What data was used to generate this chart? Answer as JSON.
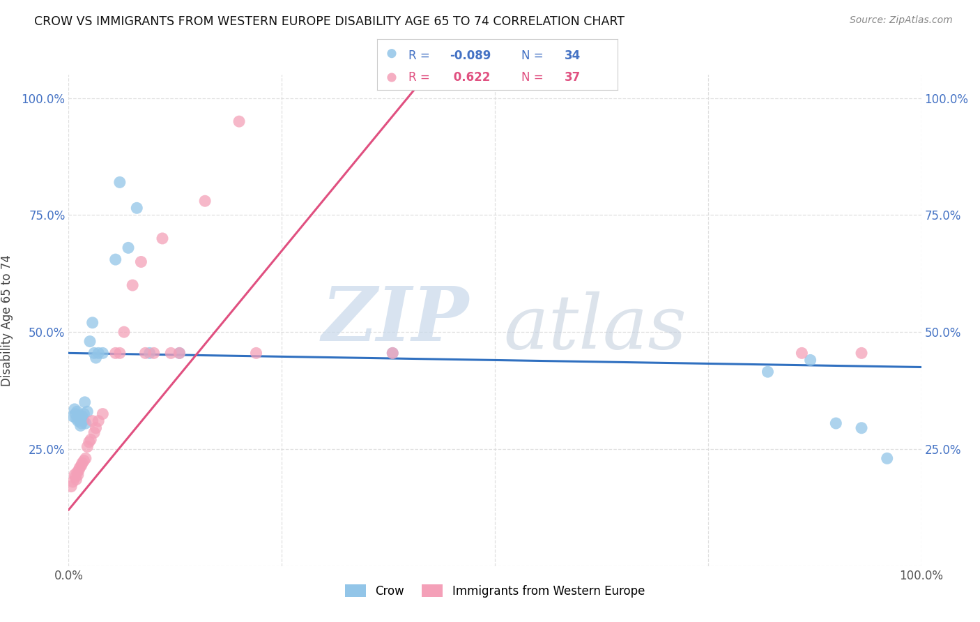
{
  "title": "CROW VS IMMIGRANTS FROM WESTERN EUROPE DISABILITY AGE 65 TO 74 CORRELATION CHART",
  "source": "Source: ZipAtlas.com",
  "ylabel": "Disability Age 65 to 74",
  "xlim": [
    0.0,
    1.0
  ],
  "ylim": [
    0.0,
    1.05
  ],
  "ytick_positions": [
    0.0,
    0.25,
    0.5,
    0.75,
    1.0
  ],
  "xtick_positions": [
    0.0,
    0.25,
    0.5,
    0.75,
    1.0
  ],
  "R_crow": -0.089,
  "N_crow": 34,
  "R_imm": 0.622,
  "N_imm": 37,
  "crow_color": "#92C5E8",
  "imm_color": "#F4A0B8",
  "crow_line_color": "#3070C0",
  "imm_line_color": "#E05080",
  "watermark_zip": "ZIP",
  "watermark_atlas": "atlas",
  "background_color": "#ffffff",
  "grid_color": "#DCDCDC",
  "crow_x": [
    0.005,
    0.007,
    0.008,
    0.009,
    0.01,
    0.011,
    0.012,
    0.013,
    0.014,
    0.015,
    0.016,
    0.017,
    0.018,
    0.019,
    0.02,
    0.022,
    0.025,
    0.028,
    0.03,
    0.032,
    0.035,
    0.04,
    0.055,
    0.06,
    0.07,
    0.08,
    0.095,
    0.13,
    0.38,
    0.82,
    0.87,
    0.9,
    0.93,
    0.96
  ],
  "crow_y": [
    0.32,
    0.335,
    0.325,
    0.315,
    0.33,
    0.31,
    0.315,
    0.32,
    0.3,
    0.305,
    0.32,
    0.31,
    0.325,
    0.35,
    0.305,
    0.33,
    0.48,
    0.52,
    0.455,
    0.445,
    0.455,
    0.455,
    0.655,
    0.82,
    0.68,
    0.765,
    0.455,
    0.455,
    0.455,
    0.415,
    0.44,
    0.305,
    0.295,
    0.23
  ],
  "imm_x": [
    0.003,
    0.005,
    0.007,
    0.008,
    0.009,
    0.01,
    0.011,
    0.012,
    0.013,
    0.015,
    0.016,
    0.018,
    0.02,
    0.022,
    0.024,
    0.026,
    0.028,
    0.03,
    0.032,
    0.035,
    0.04,
    0.055,
    0.06,
    0.065,
    0.075,
    0.085,
    0.09,
    0.1,
    0.11,
    0.12,
    0.13,
    0.16,
    0.2,
    0.22,
    0.38,
    0.86,
    0.93
  ],
  "imm_y": [
    0.17,
    0.18,
    0.195,
    0.19,
    0.185,
    0.2,
    0.195,
    0.205,
    0.21,
    0.215,
    0.22,
    0.225,
    0.23,
    0.255,
    0.265,
    0.27,
    0.31,
    0.285,
    0.295,
    0.31,
    0.325,
    0.455,
    0.455,
    0.5,
    0.6,
    0.65,
    0.455,
    0.455,
    0.7,
    0.455,
    0.455,
    0.78,
    0.95,
    0.455,
    0.455,
    0.455,
    0.455
  ]
}
